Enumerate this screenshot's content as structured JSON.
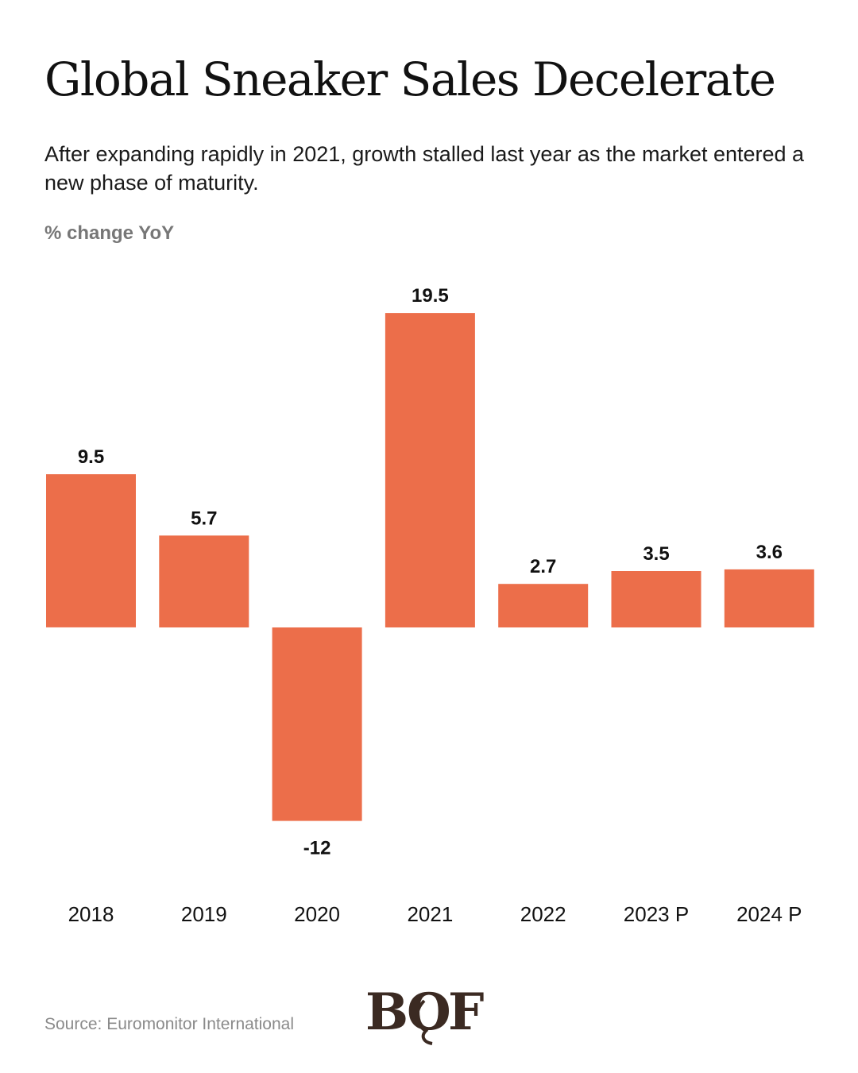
{
  "header": {
    "title": "Global Sneaker Sales Decelerate",
    "subtitle": "After expanding rapidly in 2021, growth stalled last year as the market entered a new phase of maturity."
  },
  "chart_data": {
    "type": "bar",
    "title": "Global Sneaker Sales Decelerate",
    "ylabel": "% change YoY",
    "xlabel": "",
    "categories": [
      "2018",
      "2019",
      "2020",
      "2021",
      "2022",
      "2023 P",
      "2024 P"
    ],
    "values": [
      9.5,
      5.7,
      -12,
      19.5,
      2.7,
      3.5,
      3.6
    ],
    "value_labels": [
      "9.5",
      "5.7",
      "-12",
      "19.5",
      "2.7",
      "3.5",
      "3.6"
    ],
    "grid": false,
    "legend": "none",
    "bar_color": "#EC6E4A"
  },
  "footer": {
    "source": "Source: Euromonitor International",
    "logo_text": "BOF"
  },
  "colors": {
    "bar": "#EC6E4A",
    "title": "#111111",
    "muted": "#777777",
    "logo": "#3b2a22"
  }
}
